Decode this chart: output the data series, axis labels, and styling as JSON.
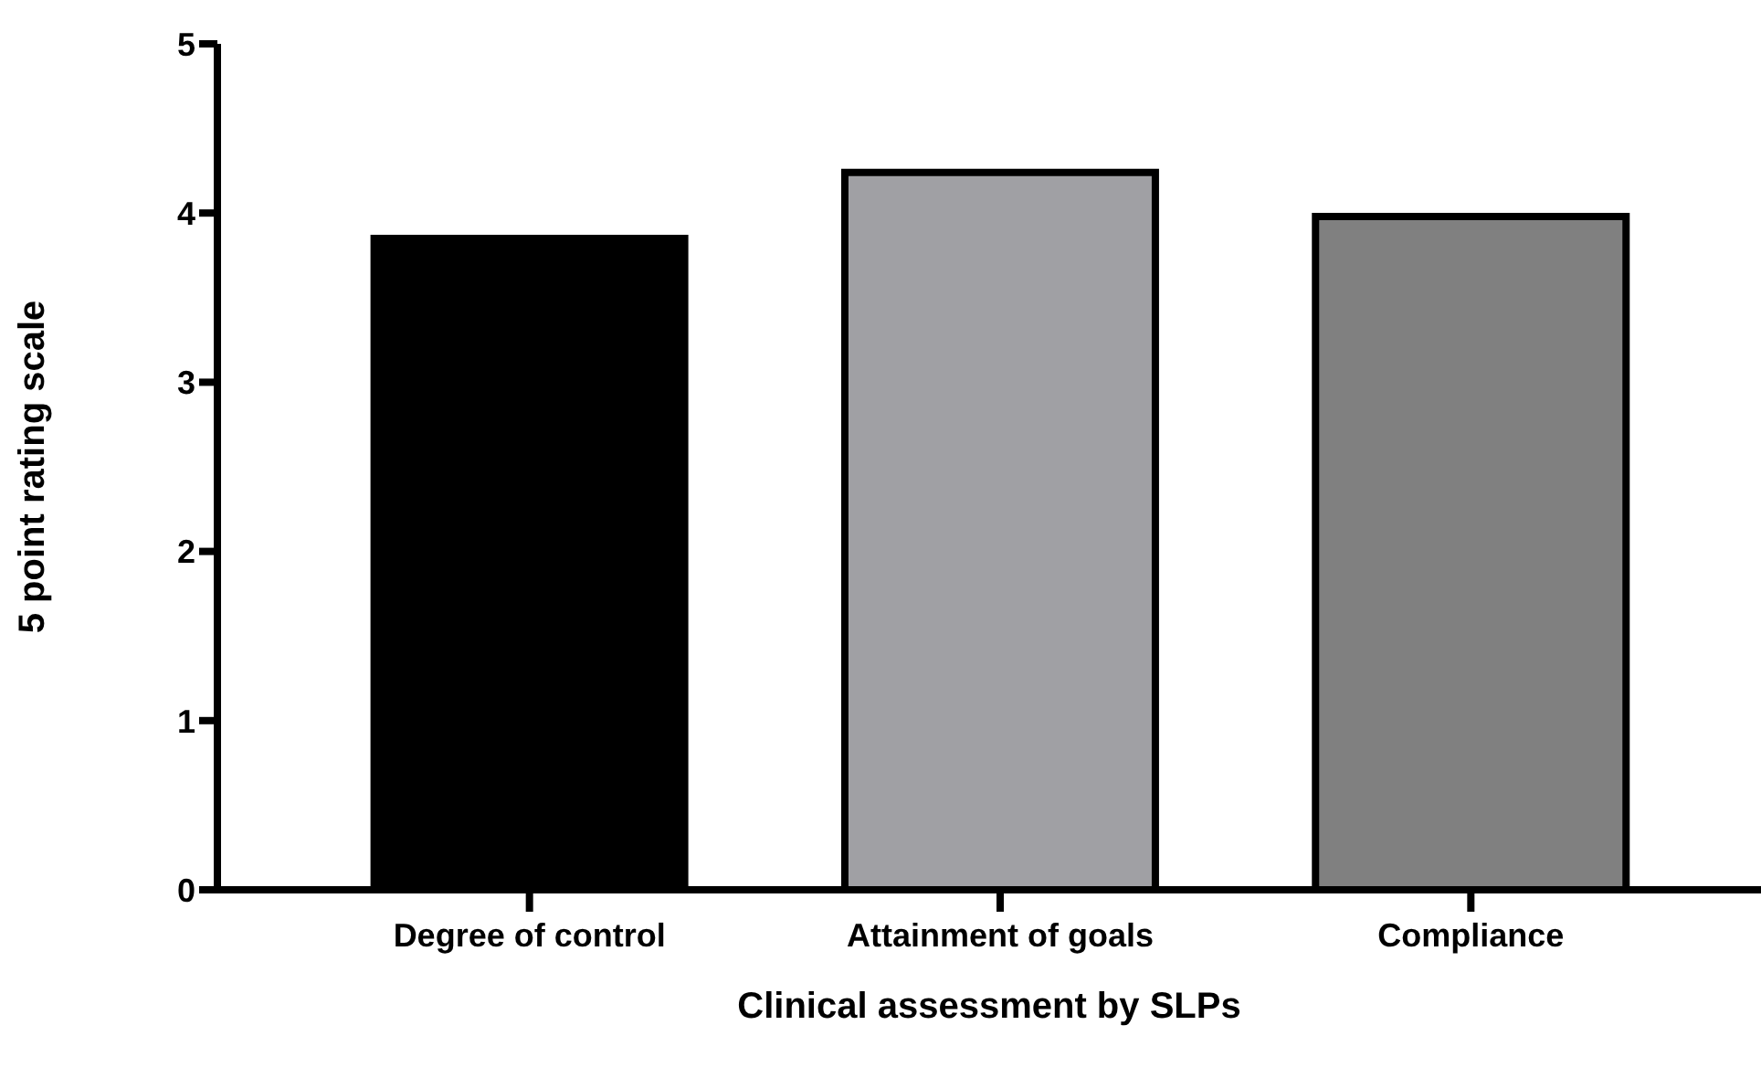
{
  "chart_data": {
    "type": "bar",
    "xlabel": "Clinical assessment by SLPs",
    "ylabel": "5 point rating scale",
    "categories": [
      "Degree of control",
      "Attainment of goals",
      "Compliance"
    ],
    "values": [
      3.85,
      4.24,
      3.98
    ],
    "colors": [
      "#000000",
      "#a0a0a4",
      "#808080"
    ],
    "ylim": [
      0,
      5
    ],
    "yticks": [
      0,
      1,
      2,
      3,
      4,
      5
    ],
    "grid": false
  }
}
